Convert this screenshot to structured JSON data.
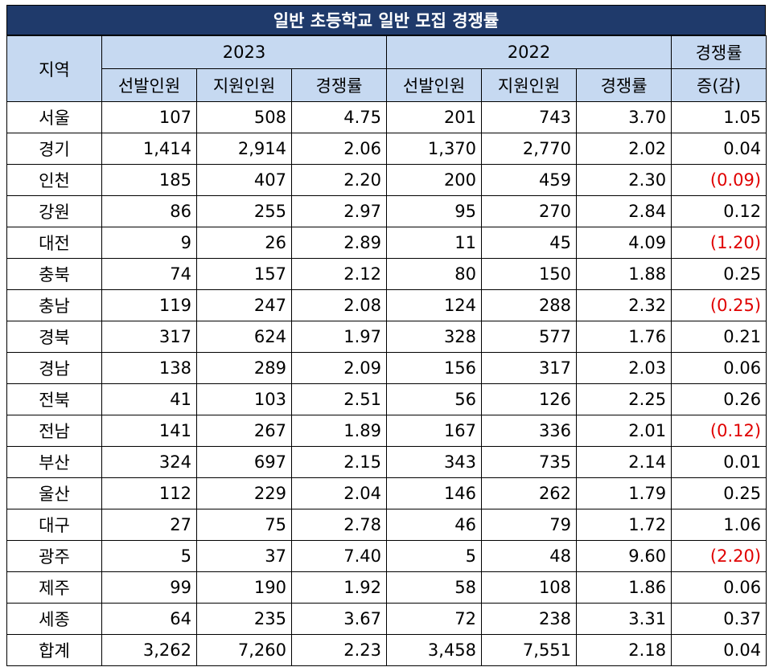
{
  "title": "일반 초등학교 일반 모집 경쟁률",
  "header": {
    "region": "지역",
    "year_a": "2023",
    "year_b": "2022",
    "diff_line1": "경쟁률",
    "diff_line2": "증(감)",
    "sub_applicants_selected": "선발인원",
    "sub_applicants": "지원인원",
    "sub_ratio": "경쟁률"
  },
  "rows": [
    {
      "region": "서울",
      "sel23": "107",
      "app23": "508",
      "rat23": "4.75",
      "sel22": "201",
      "app22": "743",
      "rat22": "3.70",
      "diff": "1.05",
      "neg": false
    },
    {
      "region": "경기",
      "sel23": "1,414",
      "app23": "2,914",
      "rat23": "2.06",
      "sel22": "1,370",
      "app22": "2,770",
      "rat22": "2.02",
      "diff": "0.04",
      "neg": false
    },
    {
      "region": "인천",
      "sel23": "185",
      "app23": "407",
      "rat23": "2.20",
      "sel22": "200",
      "app22": "459",
      "rat22": "2.30",
      "diff": "(0.09)",
      "neg": true
    },
    {
      "region": "강원",
      "sel23": "86",
      "app23": "255",
      "rat23": "2.97",
      "sel22": "95",
      "app22": "270",
      "rat22": "2.84",
      "diff": "0.12",
      "neg": false
    },
    {
      "region": "대전",
      "sel23": "9",
      "app23": "26",
      "rat23": "2.89",
      "sel22": "11",
      "app22": "45",
      "rat22": "4.09",
      "diff": "(1.20)",
      "neg": true
    },
    {
      "region": "충북",
      "sel23": "74",
      "app23": "157",
      "rat23": "2.12",
      "sel22": "80",
      "app22": "150",
      "rat22": "1.88",
      "diff": "0.25",
      "neg": false
    },
    {
      "region": "충남",
      "sel23": "119",
      "app23": "247",
      "rat23": "2.08",
      "sel22": "124",
      "app22": "288",
      "rat22": "2.32",
      "diff": "(0.25)",
      "neg": true
    },
    {
      "region": "경북",
      "sel23": "317",
      "app23": "624",
      "rat23": "1.97",
      "sel22": "328",
      "app22": "577",
      "rat22": "1.76",
      "diff": "0.21",
      "neg": false
    },
    {
      "region": "경남",
      "sel23": "138",
      "app23": "289",
      "rat23": "2.09",
      "sel22": "156",
      "app22": "317",
      "rat22": "2.03",
      "diff": "0.06",
      "neg": false
    },
    {
      "region": "전북",
      "sel23": "41",
      "app23": "103",
      "rat23": "2.51",
      "sel22": "56",
      "app22": "126",
      "rat22": "2.25",
      "diff": "0.26",
      "neg": false
    },
    {
      "region": "전남",
      "sel23": "141",
      "app23": "267",
      "rat23": "1.89",
      "sel22": "167",
      "app22": "336",
      "rat22": "2.01",
      "diff": "(0.12)",
      "neg": true
    },
    {
      "region": "부산",
      "sel23": "324",
      "app23": "697",
      "rat23": "2.15",
      "sel22": "343",
      "app22": "735",
      "rat22": "2.14",
      "diff": "0.01",
      "neg": false
    },
    {
      "region": "울산",
      "sel23": "112",
      "app23": "229",
      "rat23": "2.04",
      "sel22": "146",
      "app22": "262",
      "rat22": "1.79",
      "diff": "0.25",
      "neg": false
    },
    {
      "region": "대구",
      "sel23": "27",
      "app23": "75",
      "rat23": "2.78",
      "sel22": "46",
      "app22": "79",
      "rat22": "1.72",
      "diff": "1.06",
      "neg": false
    },
    {
      "region": "광주",
      "sel23": "5",
      "app23": "37",
      "rat23": "7.40",
      "sel22": "5",
      "app22": "48",
      "rat22": "9.60",
      "diff": "(2.20)",
      "neg": true
    },
    {
      "region": "제주",
      "sel23": "99",
      "app23": "190",
      "rat23": "1.92",
      "sel22": "58",
      "app22": "108",
      "rat22": "1.86",
      "diff": "0.06",
      "neg": false
    },
    {
      "region": "세종",
      "sel23": "64",
      "app23": "235",
      "rat23": "3.67",
      "sel22": "72",
      "app22": "238",
      "rat22": "3.31",
      "diff": "0.37",
      "neg": false
    },
    {
      "region": "합계",
      "sel23": "3,262",
      "app23": "7,260",
      "rat23": "2.23",
      "sel22": "3,458",
      "app22": "7,551",
      "rat22": "2.18",
      "diff": "0.04",
      "neg": false
    }
  ],
  "colors": {
    "title_bg": "#1f3a6b",
    "header_bg": "#c6d9f1",
    "negative": "#e00000"
  }
}
